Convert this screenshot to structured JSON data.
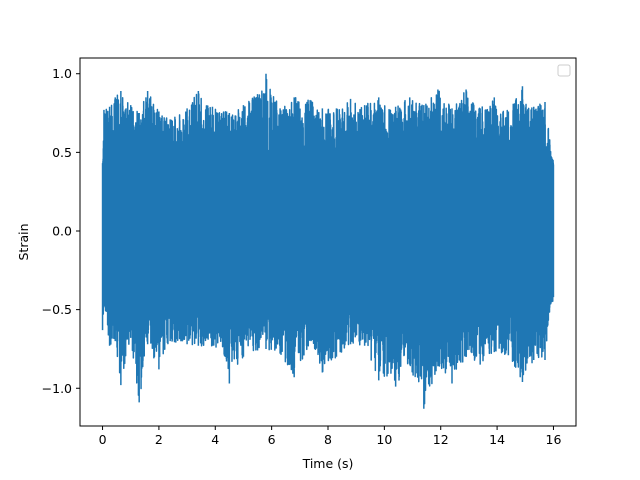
{
  "chart_data": {
    "type": "line",
    "title": "",
    "xlabel": "Time (s)",
    "ylabel": "Strain",
    "xlim": [
      -0.8,
      16.8
    ],
    "ylim": [
      -1.24,
      1.1
    ],
    "xticks": [
      0,
      2,
      4,
      6,
      8,
      10,
      12,
      14,
      16
    ],
    "xtick_labels": [
      "0",
      "2",
      "4",
      "6",
      "8",
      "10",
      "12",
      "14",
      "16"
    ],
    "yticks": [
      -1.0,
      -0.5,
      0.0,
      0.5,
      1.0
    ],
    "ytick_labels": [
      "−1.0",
      "−0.5",
      "0.0",
      "0.5",
      "1.0"
    ],
    "grid": false,
    "legend": {
      "placement": "top-right",
      "entries": []
    },
    "series": [
      {
        "color": "#1f77b4",
        "description": "dense random noise, roughly uniform amplitude about zero",
        "x_range": [
          0,
          16
        ],
        "envelope": [
          {
            "x": 0.0,
            "min": -0.63,
            "max": 0.28
          },
          {
            "x": 0.05,
            "min": -0.44,
            "max": 0.77
          },
          {
            "x": 0.25,
            "min": -0.73,
            "max": 0.79
          },
          {
            "x": 0.45,
            "min": -0.7,
            "max": 0.85
          },
          {
            "x": 0.65,
            "min": -0.98,
            "max": 0.89
          },
          {
            "x": 1.0,
            "min": -0.68,
            "max": 0.8
          },
          {
            "x": 1.3,
            "min": -1.09,
            "max": 0.75
          },
          {
            "x": 1.6,
            "min": -0.72,
            "max": 0.89
          },
          {
            "x": 2.0,
            "min": -0.88,
            "max": 0.76
          },
          {
            "x": 2.4,
            "min": -0.7,
            "max": 0.71
          },
          {
            "x": 3.0,
            "min": -0.72,
            "max": 0.78
          },
          {
            "x": 3.4,
            "min": -0.73,
            "max": 0.89
          },
          {
            "x": 3.9,
            "min": -0.73,
            "max": 0.79
          },
          {
            "x": 4.4,
            "min": -0.83,
            "max": 0.76
          },
          {
            "x": 4.5,
            "min": -0.97,
            "max": 0.75
          },
          {
            "x": 5.0,
            "min": -0.8,
            "max": 0.8
          },
          {
            "x": 5.5,
            "min": -0.76,
            "max": 0.87
          },
          {
            "x": 5.8,
            "min": -0.75,
            "max": 1.0
          },
          {
            "x": 6.3,
            "min": -0.78,
            "max": 0.78
          },
          {
            "x": 6.8,
            "min": -0.93,
            "max": 0.85
          },
          {
            "x": 7.4,
            "min": -0.7,
            "max": 0.83
          },
          {
            "x": 7.8,
            "min": -0.9,
            "max": 0.78
          },
          {
            "x": 8.3,
            "min": -0.8,
            "max": 0.78
          },
          {
            "x": 8.8,
            "min": -0.72,
            "max": 0.84
          },
          {
            "x": 9.3,
            "min": -0.73,
            "max": 0.8
          },
          {
            "x": 9.8,
            "min": -0.95,
            "max": 0.85
          },
          {
            "x": 10.4,
            "min": -0.99,
            "max": 0.79
          },
          {
            "x": 10.9,
            "min": -0.85,
            "max": 0.85
          },
          {
            "x": 11.4,
            "min": -1.13,
            "max": 0.8
          },
          {
            "x": 11.9,
            "min": -0.86,
            "max": 0.9
          },
          {
            "x": 12.4,
            "min": -0.97,
            "max": 0.78
          },
          {
            "x": 12.9,
            "min": -0.8,
            "max": 0.9
          },
          {
            "x": 13.4,
            "min": -0.85,
            "max": 0.78
          },
          {
            "x": 13.9,
            "min": -0.77,
            "max": 0.85
          },
          {
            "x": 14.4,
            "min": -0.79,
            "max": 0.76
          },
          {
            "x": 14.9,
            "min": -0.96,
            "max": 0.92
          },
          {
            "x": 15.3,
            "min": -0.82,
            "max": 0.79
          },
          {
            "x": 15.7,
            "min": -0.82,
            "max": 0.82
          },
          {
            "x": 16.0,
            "min": -0.3,
            "max": 0.4
          }
        ],
        "core_band": [
          -0.45,
          0.45
        ]
      }
    ]
  }
}
